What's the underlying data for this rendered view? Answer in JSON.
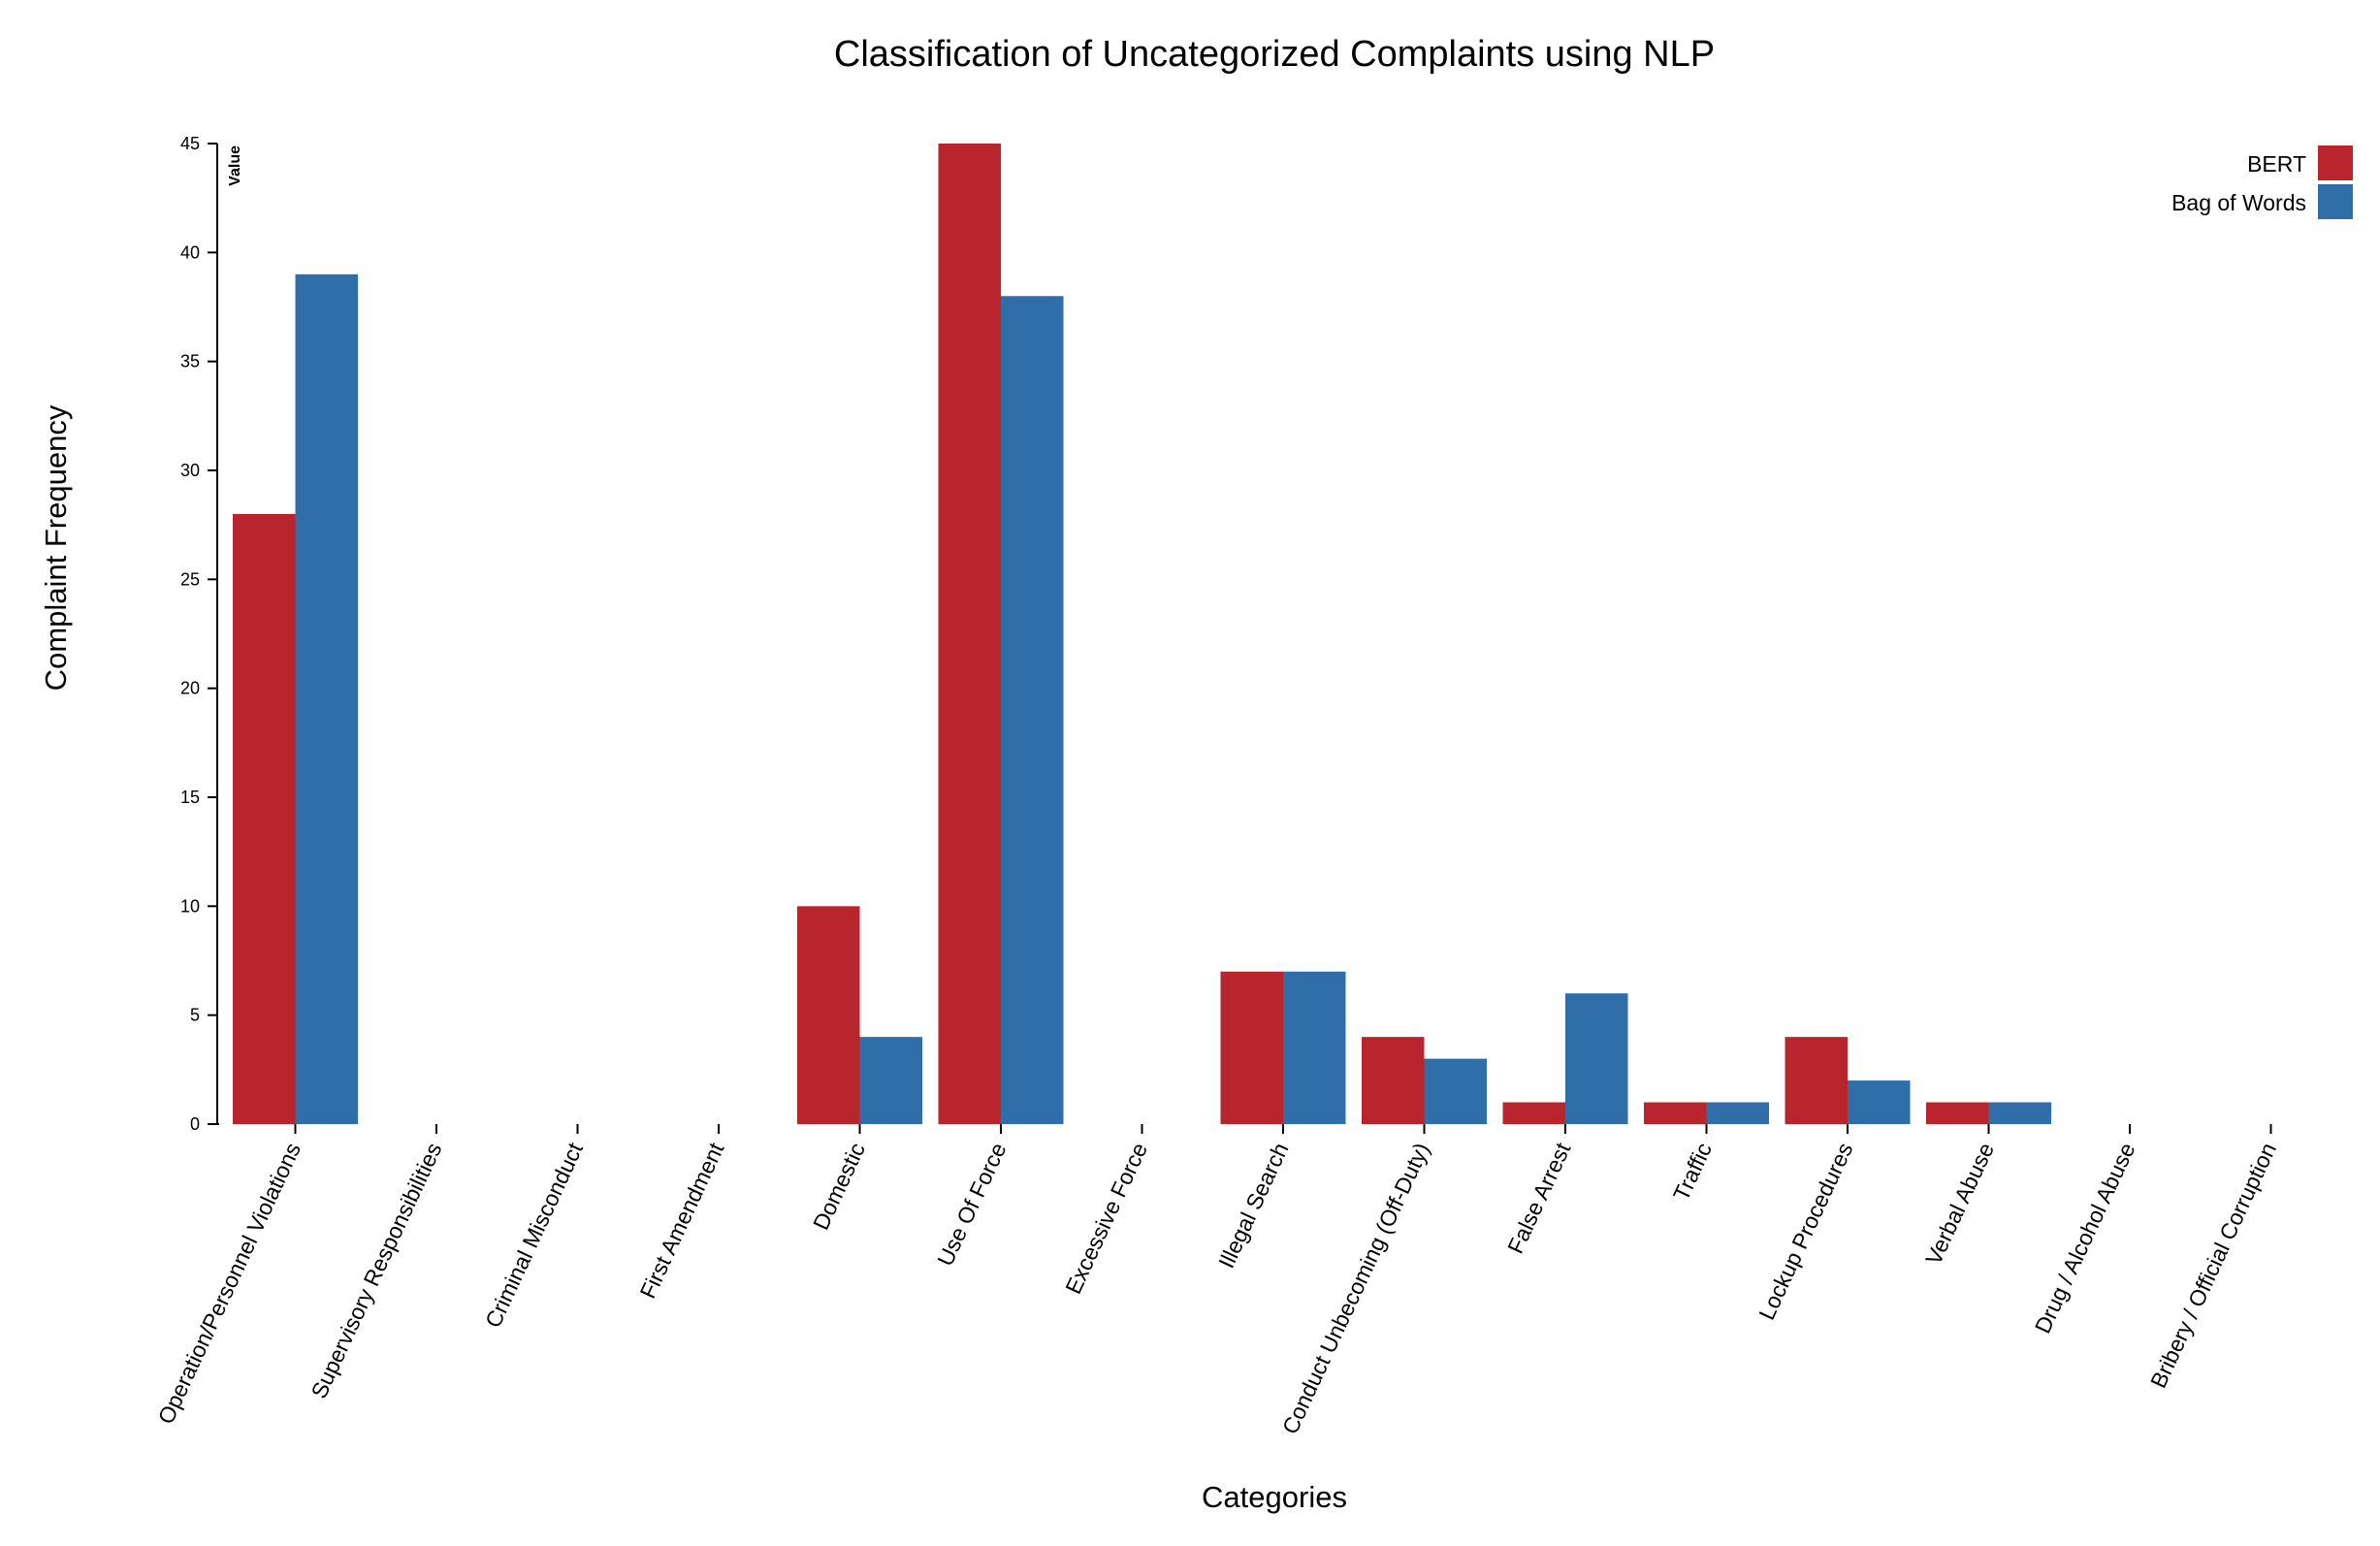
{
  "chart_data": {
    "type": "bar",
    "title": "Classification of Uncategorized Complaints using NLP",
    "xlabel": "Categories",
    "ylabel": "Complaint Frequency",
    "y_axis_caption": "Value",
    "ylim": [
      0,
      45
    ],
    "yticks": [
      0,
      5,
      10,
      15,
      20,
      25,
      30,
      35,
      40,
      45
    ],
    "legend_position": "top-right",
    "grid": false,
    "categories": [
      "Operation/Personnel Violations",
      "Supervisory Responsibilities",
      "Criminal Misconduct",
      "First Amendment",
      "Domestic",
      "Use Of Force",
      "Excessive Force",
      "Illegal Search",
      "Conduct Unbecoming (Off-Duty)",
      "False Arrest",
      "Traffic",
      "Lockup Procedures",
      "Verbal Abuse",
      "Drug / Alcohol Abuse",
      "Bribery / Official Corruption"
    ],
    "series": [
      {
        "name": "BERT",
        "color": "#b8252d",
        "values": [
          28,
          0,
          0,
          0,
          10,
          45,
          0,
          7,
          4,
          1,
          1,
          4,
          1,
          0,
          0
        ]
      },
      {
        "name": "Bag of Words",
        "color": "#2f6ea9",
        "values": [
          39,
          0,
          0,
          0,
          4,
          38,
          0,
          7,
          3,
          6,
          1,
          2,
          1,
          0,
          0
        ]
      }
    ]
  }
}
